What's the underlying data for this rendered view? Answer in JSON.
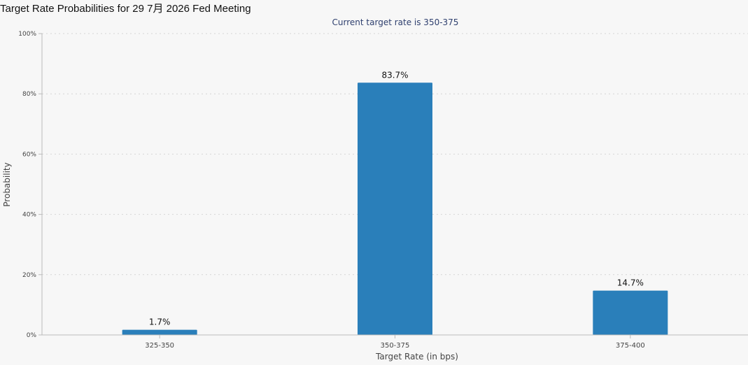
{
  "page": {
    "title": "Target Rate Probabilities for 29 7月 2026 Fed Meeting"
  },
  "chart_data": {
    "type": "bar",
    "subtitle": "Current target rate is 350-375",
    "xlabel": "Target Rate (in bps)",
    "ylabel": "Probability",
    "categories": [
      "325-350",
      "350-375",
      "375-400"
    ],
    "values": [
      1.7,
      83.7,
      14.7
    ],
    "value_labels": [
      "1.7%",
      "83.7%",
      "14.7%"
    ],
    "ylim": [
      0,
      100
    ],
    "yticks": [
      0,
      20,
      40,
      60,
      80,
      100
    ],
    "ytick_labels": [
      "0%",
      "20%",
      "40%",
      "60%",
      "80%",
      "100%"
    ],
    "grid": true,
    "legend": false,
    "colors": {
      "bar": "#2a7fba",
      "grid": "#d6d6d6",
      "axis": "#bbbbbb",
      "subtitle": "#2e3f6e"
    }
  }
}
